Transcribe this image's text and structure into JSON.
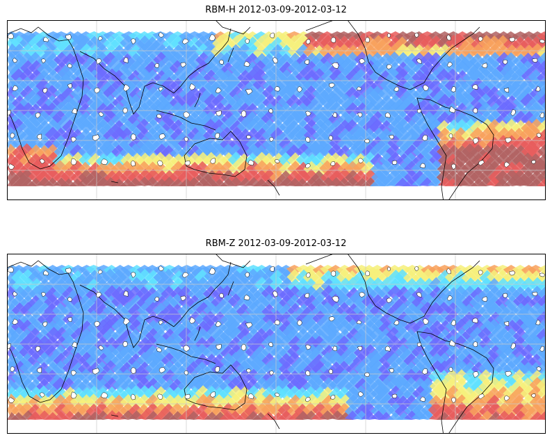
{
  "panels": [
    {
      "title": "RBM-H 2012-03-09-2012-03-12",
      "field": "H",
      "colors": [
        "#6a6aff",
        "#5aa8ff",
        "#5ee0ff",
        "#f6f07a",
        "#f8a05a",
        "#e85a5a",
        "#b06060"
      ]
    },
    {
      "title": "RBM-Z 2012-03-09-2012-03-12",
      "field": "Z",
      "colors": [
        "#6a6aff",
        "#5aa8ff",
        "#5ee0ff",
        "#f6f07a",
        "#f8a05a",
        "#e85a5a",
        "#b06060"
      ]
    }
  ]
}
